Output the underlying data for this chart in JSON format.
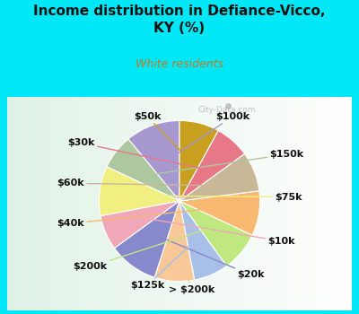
{
  "title": "Income distribution in Defiance-Vicco,\nKY (%)",
  "subtitle": "White residents",
  "title_color": "#111111",
  "subtitle_color": "#c07828",
  "background_outer": "#00e8f8",
  "watermark": "City-Data.com",
  "labels": [
    "$100k",
    "$150k",
    "$75k",
    "$10k",
    "$20k",
    "> $200k",
    "$125k",
    "$200k",
    "$40k",
    "$60k",
    "$30k",
    "$50k"
  ],
  "values": [
    11,
    7,
    10,
    7,
    10,
    8,
    7,
    8,
    9,
    8,
    7,
    8
  ],
  "colors": [
    "#a898d0",
    "#adc8a0",
    "#f0ef80",
    "#f0a8b8",
    "#8888cc",
    "#f8c898",
    "#a8c0e8",
    "#c0e880",
    "#f8b870",
    "#c8b898",
    "#e87888",
    "#c8a020"
  ],
  "label_fontsize": 8,
  "startangle": 90,
  "label_color": "#111111"
}
